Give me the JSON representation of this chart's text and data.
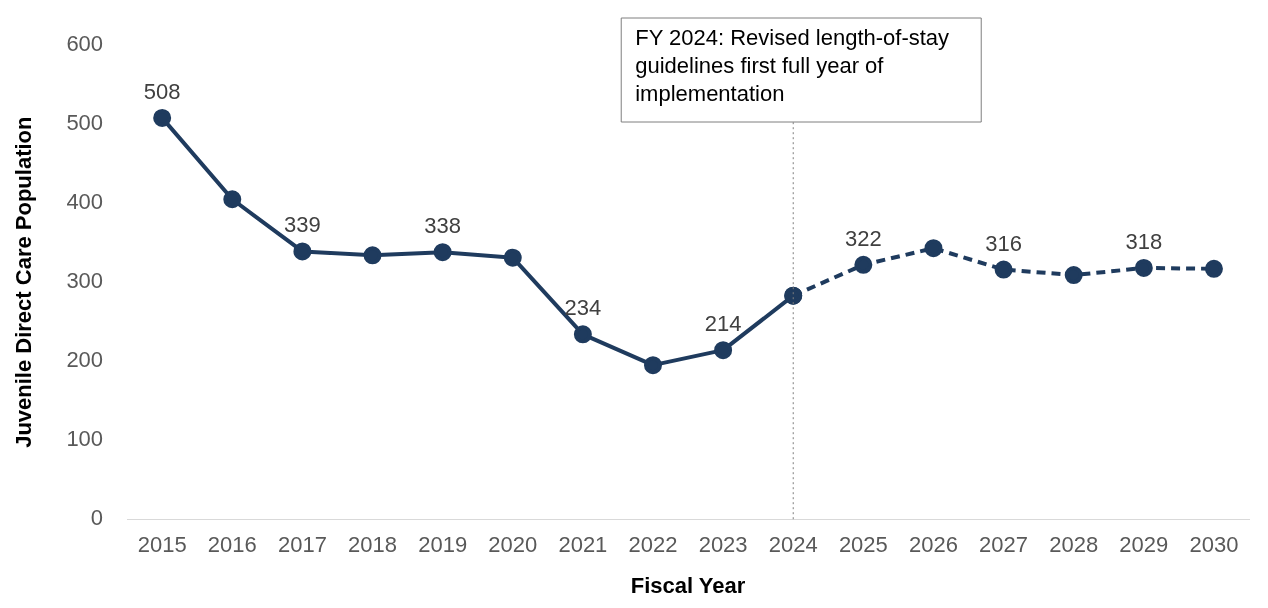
{
  "chart_data": {
    "type": "line",
    "xlabel": "Fiscal Year",
    "ylabel": "Juvenile Direct Care Population",
    "categories": [
      "2015",
      "2016",
      "2017",
      "2018",
      "2019",
      "2020",
      "2021",
      "2022",
      "2023",
      "2024",
      "2025",
      "2026",
      "2027",
      "2028",
      "2029",
      "2030"
    ],
    "series": [
      {
        "color": "#1f3b5e",
        "line_style": "solid",
        "values": [
          508,
          405,
          339,
          334,
          338,
          331,
          234,
          195,
          214,
          283,
          null,
          null,
          null,
          null,
          null,
          null
        ],
        "value_labels": [
          "508",
          null,
          "339",
          null,
          "338",
          null,
          "234",
          null,
          "214",
          null,
          null,
          null,
          null,
          null,
          null,
          null
        ]
      },
      {
        "color": "#1f3b5e",
        "line_style": "dashed",
        "values": [
          null,
          null,
          null,
          null,
          null,
          null,
          null,
          null,
          null,
          283,
          322,
          343,
          316,
          309,
          318,
          317
        ],
        "value_labels": [
          null,
          null,
          null,
          null,
          null,
          null,
          null,
          null,
          null,
          null,
          "322",
          null,
          "316",
          null,
          "318",
          null
        ]
      }
    ],
    "ylim": [
      0,
      600
    ],
    "yticks": [
      0,
      100,
      200,
      300,
      400,
      500,
      600
    ],
    "grid": false,
    "legend": false,
    "marker": "circle",
    "ref_lines": [
      {
        "axis": "x",
        "value": "2024",
        "label": "FY 2024: Revised length-of-stay guidelines first full year of implementation",
        "color": "#7f7f7f",
        "line_style": "dotted"
      }
    ]
  }
}
